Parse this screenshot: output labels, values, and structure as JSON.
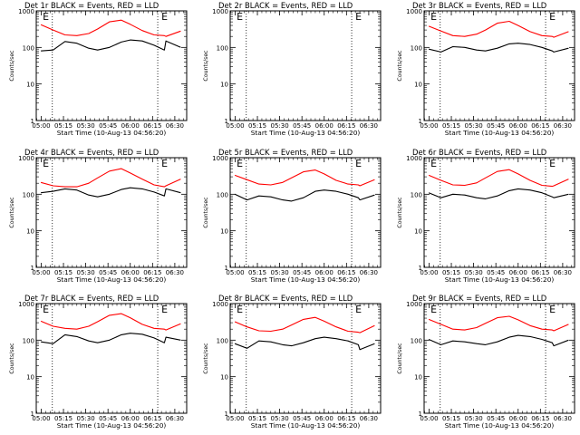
{
  "figure": {
    "xlabel": "Start Time (10-Aug-13 04:56:20)",
    "ylabel": "Counts/sec",
    "xticks": [
      "05:00",
      "05:15",
      "05:30",
      "05:45",
      "06:00",
      "06:15",
      "06:30"
    ],
    "yticks": [
      "1",
      "10",
      "100",
      "1000"
    ],
    "event_marker": "E",
    "colors": {
      "events": "#000000",
      "lld": "#ff0000",
      "axes": "#000000",
      "background": "#ffffff"
    }
  },
  "chart_data": [
    {
      "type": "line",
      "title": "Det 1r BLACK = Events, RED = LLD",
      "xlabel": "Start Time (10-Aug-13 04:56:20)",
      "ylabel": "Counts/sec",
      "x_minutes_after_0500": [
        -0.25,
        8,
        16,
        24,
        32,
        38,
        46,
        54,
        60,
        68,
        76,
        83,
        84,
        94
      ],
      "ylim": [
        1,
        1000
      ],
      "yscale": "log",
      "vlines_minutes": [
        7.5,
        78.5
      ],
      "event_markers_minutes": [
        1,
        81
      ],
      "series": [
        {
          "name": "BLACK = Events",
          "values": [
            80,
            85,
            145,
            130,
            95,
            85,
            100,
            140,
            160,
            150,
            115,
            85,
            150,
            100
          ]
        },
        {
          "name": "RED = LLD",
          "values": [
            420,
            300,
            220,
            210,
            240,
            320,
            500,
            560,
            430,
            290,
            220,
            210,
            200,
            280
          ]
        }
      ]
    },
    {
      "type": "line",
      "title": "Det 2r BLACK = Events, RED = LLD",
      "xlabel": "Start Time (10-Aug-13 04:56:20)",
      "ylabel": "Counts/sec",
      "x_minutes_after_0500": [],
      "ylim": [
        1,
        1000
      ],
      "yscale": "log",
      "vlines_minutes": [
        7.5,
        78.5
      ],
      "event_markers_minutes": [
        1,
        81
      ],
      "series": []
    },
    {
      "type": "line",
      "title": "Det 3r BLACK = Events, RED = LLD",
      "xlabel": "Start Time (10-Aug-13 04:56:20)",
      "ylabel": "Counts/sec",
      "x_minutes_after_0500": [
        -0.25,
        8,
        16,
        24,
        32,
        38,
        46,
        54,
        60,
        68,
        76,
        83,
        84,
        94
      ],
      "ylim": [
        1,
        1000
      ],
      "yscale": "log",
      "vlines_minutes": [
        7.5,
        78.5
      ],
      "event_markers_minutes": [
        1,
        81
      ],
      "series": [
        {
          "name": "BLACK = Events",
          "values": [
            90,
            75,
            105,
            100,
            85,
            80,
            95,
            125,
            130,
            120,
            100,
            80,
            75,
            95
          ]
        },
        {
          "name": "RED = LLD",
          "values": [
            380,
            280,
            210,
            200,
            230,
            300,
            460,
            520,
            400,
            270,
            210,
            200,
            190,
            270
          ]
        }
      ]
    },
    {
      "type": "line",
      "title": "Det 4r BLACK = Events, RED = LLD",
      "xlabel": "Start Time (10-Aug-13 04:56:20)",
      "ylabel": "Counts/sec",
      "x_minutes_after_0500": [
        -0.25,
        8,
        16,
        24,
        32,
        38,
        46,
        54,
        60,
        68,
        76,
        83,
        84,
        94
      ],
      "ylim": [
        1,
        1000
      ],
      "yscale": "log",
      "vlines_minutes": [
        7.5,
        78.5
      ],
      "event_markers_minutes": [
        1,
        81
      ],
      "series": [
        {
          "name": "BLACK = Events",
          "values": [
            110,
            120,
            140,
            130,
            95,
            85,
            100,
            135,
            150,
            140,
            115,
            90,
            140,
            110
          ]
        },
        {
          "name": "RED = LLD",
          "values": [
            210,
            170,
            160,
            160,
            200,
            280,
            430,
            500,
            380,
            260,
            180,
            160,
            170,
            260
          ]
        }
      ]
    },
    {
      "type": "line",
      "title": "Det 5r BLACK = Events, RED = LLD",
      "xlabel": "Start Time (10-Aug-13 04:56:20)",
      "ylabel": "Counts/sec",
      "x_minutes_after_0500": [
        -0.25,
        8,
        16,
        24,
        32,
        38,
        46,
        54,
        60,
        68,
        76,
        83,
        84,
        94
      ],
      "ylim": [
        1,
        1000
      ],
      "yscale": "log",
      "vlines_minutes": [
        7.5,
        78.5
      ],
      "event_markers_minutes": [
        1,
        81
      ],
      "series": [
        {
          "name": "BLACK = Events",
          "values": [
            100,
            70,
            90,
            85,
            70,
            65,
            80,
            120,
            130,
            120,
            100,
            80,
            70,
            95
          ]
        },
        {
          "name": "RED = LLD",
          "values": [
            330,
            250,
            190,
            180,
            210,
            280,
            410,
            460,
            360,
            240,
            190,
            180,
            170,
            250
          ]
        }
      ]
    },
    {
      "type": "line",
      "title": "Det 6r BLACK = Events, RED = LLD",
      "xlabel": "Start Time (10-Aug-13 04:56:20)",
      "ylabel": "Counts/sec",
      "x_minutes_after_0500": [
        -0.25,
        8,
        16,
        24,
        32,
        38,
        46,
        54,
        60,
        68,
        76,
        83,
        84,
        94
      ],
      "ylim": [
        1,
        1000
      ],
      "yscale": "log",
      "vlines_minutes": [
        7.5,
        78.5
      ],
      "event_markers_minutes": [
        1,
        81
      ],
      "series": [
        {
          "name": "BLACK = Events",
          "values": [
            110,
            80,
            100,
            95,
            80,
            75,
            90,
            125,
            140,
            130,
            110,
            85,
            80,
            100
          ]
        },
        {
          "name": "RED = LLD",
          "values": [
            330,
            240,
            180,
            175,
            205,
            280,
            420,
            470,
            360,
            240,
            175,
            165,
            170,
            260
          ]
        }
      ]
    },
    {
      "type": "line",
      "title": "Det 7r BLACK = Events, RED = LLD",
      "xlabel": "Start Time (10-Aug-13 04:56:20)",
      "ylabel": "Counts/sec",
      "x_minutes_after_0500": [
        -0.25,
        8,
        16,
        24,
        32,
        38,
        46,
        54,
        60,
        68,
        76,
        83,
        84,
        94
      ],
      "ylim": [
        1,
        1000
      ],
      "yscale": "log",
      "vlines_minutes": [
        7.5,
        78.5
      ],
      "event_markers_minutes": [
        1,
        81
      ],
      "series": [
        {
          "name": "BLACK = Events",
          "values": [
            90,
            80,
            140,
            125,
            95,
            85,
            100,
            140,
            155,
            145,
            115,
            85,
            120,
            100
          ]
        },
        {
          "name": "RED = LLD",
          "values": [
            330,
            240,
            210,
            200,
            240,
            320,
            480,
            530,
            410,
            270,
            210,
            200,
            190,
            280
          ]
        }
      ]
    },
    {
      "type": "line",
      "title": "Det 8r BLACK = Events, RED = LLD",
      "xlabel": "Start Time (10-Aug-13 04:56:20)",
      "ylabel": "Counts/sec",
      "x_minutes_after_0500": [
        -0.25,
        8,
        16,
        24,
        32,
        38,
        46,
        54,
        60,
        68,
        76,
        83,
        84,
        94
      ],
      "ylim": [
        1,
        1000
      ],
      "yscale": "log",
      "vlines_minutes": [
        7.5,
        78.5
      ],
      "event_markers_minutes": [
        1,
        81
      ],
      "series": [
        {
          "name": "BLACK = Events",
          "values": [
            80,
            60,
            95,
            90,
            75,
            70,
            85,
            110,
            120,
            110,
            95,
            75,
            55,
            80
          ]
        },
        {
          "name": "RED = LLD",
          "values": [
            320,
            230,
            180,
            175,
            200,
            260,
            370,
            420,
            330,
            230,
            175,
            165,
            160,
            250
          ]
        }
      ]
    },
    {
      "type": "line",
      "title": "Det 9r BLACK = Events, RED = LLD",
      "xlabel": "Start Time (10-Aug-13 04:56:20)",
      "ylabel": "Counts/sec",
      "x_minutes_after_0500": [
        -0.25,
        8,
        16,
        24,
        32,
        38,
        46,
        54,
        60,
        68,
        76,
        83,
        84,
        94
      ],
      "ylim": [
        1,
        1000
      ],
      "yscale": "log",
      "vlines_minutes": [
        7.5,
        78.5
      ],
      "event_markers_minutes": [
        1,
        81
      ],
      "series": [
        {
          "name": "BLACK = Events",
          "values": [
            105,
            75,
            95,
            90,
            80,
            75,
            90,
            120,
            135,
            125,
            105,
            85,
            70,
            100
          ]
        },
        {
          "name": "RED = LLD",
          "values": [
            370,
            270,
            200,
            190,
            220,
            290,
            410,
            450,
            360,
            250,
            200,
            190,
            180,
            270
          ]
        }
      ]
    }
  ]
}
